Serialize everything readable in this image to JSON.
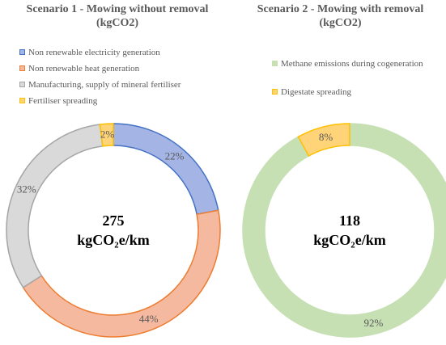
{
  "chart_data": [
    {
      "type": "pie",
      "title": "Scenario 1 - Mowing without removal (kgCO2)",
      "title_lines": [
        "Scenario 1 - Mowing without removal",
        "(kgCO2)"
      ],
      "donut": true,
      "center_value": "275",
      "center_unit": "kgCO₂e/km",
      "legend_position": "top",
      "categories": [
        "Non renewable electricity generation",
        "Non renewable heat generation",
        "Manufacturing, supply of mineral fertiliser",
        "Fertiliser spreading"
      ],
      "values": [
        22,
        44,
        32,
        2
      ],
      "value_labels": [
        "22%",
        "44%",
        "32%",
        "2%"
      ],
      "colors": [
        "#a4b4e4",
        "#f5b9a0",
        "#d9d9d9",
        "#ffd479"
      ],
      "edge_colors": [
        "#4472c4",
        "#ed7d31",
        "#a5a5a5",
        "#ffc000"
      ]
    },
    {
      "type": "pie",
      "title": "Scenario 2 - Mowing with removal (kgCO2)",
      "title_lines": [
        "Scenario 2 - Mowing with removal",
        "(kgCO2)"
      ],
      "donut": true,
      "center_value": "118",
      "center_unit": "kgCO₂e/km",
      "legend_position": "top",
      "categories": [
        "Methane emissions during cogeneration",
        "Digestate spreading"
      ],
      "values": [
        92,
        8
      ],
      "value_labels": [
        "92%",
        "8%"
      ],
      "colors": [
        "#c6e0b4",
        "#ffd479"
      ],
      "edge_colors": [
        "#c6e0b4",
        "#ffc000"
      ]
    }
  ]
}
